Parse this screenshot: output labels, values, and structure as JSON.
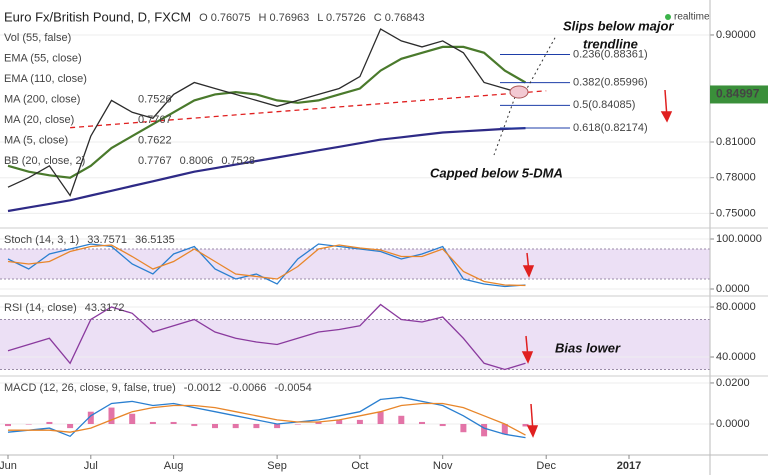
{
  "chart_data": [
    {
      "type": "line",
      "title": "Euro Fx/British Pound, D, FXCM",
      "realtime": "realtime",
      "ohlc": [
        "O 0.76075",
        "H 0.76963",
        "L 0.75726",
        "C 0.76843"
      ],
      "indicators": [
        {
          "name": "Vol (55, false)",
          "values": []
        },
        {
          "name": "EMA (55, close)",
          "values": []
        },
        {
          "name": "EMA (110, close)",
          "values": []
        },
        {
          "name": "MA (200, close)",
          "values": [
            "0.7526"
          ]
        },
        {
          "name": "MA (20, close)",
          "values": [
            "0.7767"
          ]
        },
        {
          "name": "MA (5, close)",
          "values": [
            "0.7622"
          ]
        },
        {
          "name": "BB (20, close, 2)",
          "values": [
            "0.7767",
            "0.8006",
            "0.7528"
          ]
        }
      ],
      "categories": [
        "Jun",
        null,
        null,
        null,
        "Jul",
        null,
        null,
        null,
        "Aug",
        null,
        null,
        null,
        null,
        "Sep",
        null,
        null,
        null,
        "Oct",
        null,
        null,
        null,
        "Nov",
        null,
        null,
        null,
        null,
        "Dec",
        null,
        null,
        null,
        "2017",
        null,
        null,
        null
      ],
      "ylim": [
        0.7377,
        0.9294
      ],
      "yticks": [
        {
          "value": 0.9,
          "label": "0.90000"
        },
        {
          "value": 0.81,
          "label": "0.81000"
        },
        {
          "value": 0.78,
          "label": "0.78000"
        },
        {
          "value": 0.75,
          "label": "0.75000"
        }
      ],
      "last_price": 0.84997,
      "series": [
        {
          "name": "MA (200, close)",
          "color": "#2e2a86",
          "values": [
            0.752,
            0.755,
            0.758,
            0.761,
            0.765,
            0.769,
            0.773,
            0.777,
            0.781,
            0.785,
            0.788,
            0.791,
            0.794,
            0.797,
            0.8,
            0.803,
            0.806,
            0.809,
            0.812,
            0.814,
            0.816,
            0.818,
            0.819,
            0.82,
            0.821,
            0.8217,
            null,
            null,
            null,
            null,
            null,
            null,
            null,
            null
          ]
        },
        {
          "name": "MA (20, close)",
          "color": "#4a7a2c",
          "values": [
            0.79,
            0.785,
            0.782,
            0.78,
            0.79,
            0.805,
            0.815,
            0.825,
            0.835,
            0.845,
            0.85,
            0.852,
            0.85,
            0.845,
            0.843,
            0.845,
            0.85,
            0.855,
            0.87,
            0.88,
            0.885,
            0.89,
            0.89,
            0.885,
            0.87,
            0.86,
            null,
            null,
            null,
            null,
            null,
            null,
            null,
            null
          ]
        },
        {
          "name": "Trendline",
          "color": "#e02020",
          "dashed": true,
          "values": [
            null,
            null,
            null,
            0.822,
            0.82335,
            0.8247,
            0.82605,
            0.8274,
            0.82875,
            0.8301,
            0.83145,
            0.8328,
            0.83415,
            0.8355,
            0.83685,
            0.8382,
            0.83955,
            0.8409,
            0.84225,
            0.8436,
            0.84495,
            0.8463,
            0.84765,
            0.849,
            0.85035,
            0.8517,
            0.85305,
            null,
            null,
            null,
            null,
            null,
            null,
            null
          ]
        },
        {
          "name": "Close",
          "color": "#2b2b2b",
          "values": [
            0.772,
            0.78,
            0.79,
            0.765,
            0.815,
            0.845,
            0.835,
            0.83,
            0.85,
            0.86,
            0.855,
            0.85,
            0.845,
            0.84,
            0.845,
            0.85,
            0.855,
            0.865,
            0.905,
            0.895,
            0.89,
            0.895,
            0.885,
            0.86,
            0.855,
            0.85,
            null,
            null,
            null,
            null,
            null,
            null,
            null,
            null
          ]
        }
      ],
      "fib_levels": [
        {
          "value": 0.88361,
          "label": "0.236(0.88361)"
        },
        {
          "value": 0.85996,
          "label": "0.382(0.85996)"
        },
        {
          "value": 0.84085,
          "label": "0.5(0.84085)"
        },
        {
          "value": 0.82174,
          "label": "0.618(0.82174)"
        }
      ],
      "annotations": [
        {
          "lines": [
            "Slips below major",
            "trendline"
          ]
        },
        {
          "lines": [
            "Capped below 5-DMA"
          ]
        }
      ]
    },
    {
      "type": "line",
      "label": "Stoch (14, 3, 1)",
      "ylim": [
        -12,
        120
      ],
      "yticks": [
        {
          "value": 100,
          "label": "100.0000"
        },
        {
          "value": 0,
          "label": "0.0000"
        }
      ],
      "band": [
        20,
        80
      ],
      "series": [
        {
          "name": "%K",
          "color": "#2a7fd0",
          "readout": 33.7571,
          "values": [
            60,
            40,
            70,
            80,
            90,
            85,
            50,
            30,
            70,
            85,
            40,
            20,
            30,
            10,
            60,
            90,
            85,
            80,
            75,
            60,
            70,
            85,
            20,
            10,
            5,
            8,
            null,
            null,
            null,
            null,
            null,
            null,
            null,
            null
          ]
        },
        {
          "name": "%D",
          "color": "#e8862a",
          "readout": 36.5135,
          "values": [
            55,
            50,
            55,
            75,
            85,
            88,
            65,
            40,
            55,
            80,
            55,
            30,
            25,
            20,
            45,
            80,
            88,
            82,
            78,
            65,
            65,
            80,
            35,
            15,
            8,
            7,
            null,
            null,
            null,
            null,
            null,
            null,
            null,
            null
          ]
        }
      ]
    },
    {
      "type": "line",
      "label": "RSI (14, close)",
      "ylim": [
        25.6,
        88
      ],
      "yticks": [
        {
          "value": 80,
          "label": "80.0000"
        },
        {
          "value": 40,
          "label": "40.0000"
        }
      ],
      "band": [
        30,
        70
      ],
      "series": [
        {
          "name": "RSI",
          "color": "#8a3a9e",
          "readout": 43.3172,
          "values": [
            45,
            50,
            55,
            35,
            70,
            80,
            75,
            60,
            65,
            70,
            60,
            55,
            52,
            50,
            55,
            60,
            62,
            65,
            82,
            70,
            68,
            72,
            55,
            35,
            30,
            35,
            null,
            null,
            null,
            null,
            null,
            null,
            null,
            null
          ]
        }
      ]
    },
    {
      "type": "line",
      "label": "MACD (12, 26, close, 9, false, true)",
      "ylim": [
        -0.0151,
        0.0229
      ],
      "yticks": [
        {
          "value": 0.02,
          "label": "0.0200"
        },
        {
          "value": 0,
          "label": "0.0000"
        }
      ],
      "series": [
        {
          "name": "Histogram",
          "type": "bar",
          "color": "#d9468a",
          "readout": -0.0012,
          "values": [
            -0.001,
            0,
            0.001,
            -0.002,
            0.006,
            0.008,
            0.005,
            0.001,
            0.001,
            -0.001,
            -0.002,
            -0.002,
            -0.002,
            -0.002,
            0,
            0.001,
            0.002,
            0.002,
            0.006,
            0.004,
            0.001,
            -0.001,
            -0.004,
            -0.006,
            -0.005,
            -0.0012,
            null,
            null,
            null,
            null,
            null,
            null,
            null,
            null
          ]
        },
        {
          "name": "MACD",
          "color": "#2a7fd0",
          "readout": -0.0066,
          "values": [
            -0.004,
            -0.003,
            -0.002,
            -0.006,
            0.004,
            0.01,
            0.011,
            0.009,
            0.01,
            0.008,
            0.006,
            0.004,
            0.002,
            0,
            0.001,
            0.002,
            0.004,
            0.006,
            0.012,
            0.013,
            0.011,
            0.009,
            0.004,
            -0.002,
            -0.005,
            -0.0066,
            null,
            null,
            null,
            null,
            null,
            null,
            null,
            null
          ]
        },
        {
          "name": "Signal",
          "color": "#e8862a",
          "readout": -0.0054,
          "values": [
            -0.003,
            -0.003,
            -0.003,
            -0.004,
            -0.002,
            0.002,
            0.006,
            0.008,
            0.009,
            0.009,
            0.008,
            0.006,
            0.004,
            0.002,
            0.001,
            0.001,
            0.002,
            0.004,
            0.006,
            0.009,
            0.01,
            0.01,
            0.008,
            0.004,
            0,
            -0.0054,
            null,
            null,
            null,
            null,
            null,
            null,
            null,
            null
          ]
        }
      ]
    },
    {
      "type": "annotation",
      "lines": [
        "Bias lower"
      ]
    }
  ]
}
